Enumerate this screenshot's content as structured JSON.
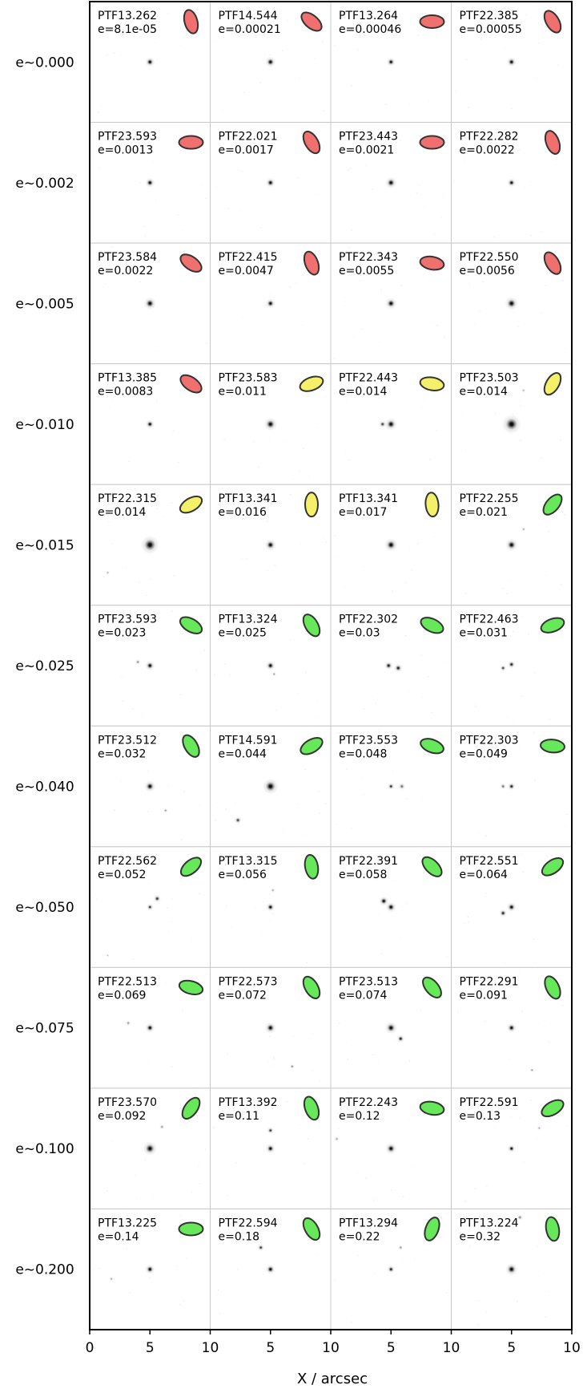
{
  "chart_data": {
    "type": "image_grid",
    "xlabel": "X / arcsec",
    "x_ticks": [
      "0",
      "5",
      "10",
      "5",
      "10",
      "5",
      "10",
      "5",
      "10"
    ],
    "columns": 4,
    "colors": {
      "red": "#f07070",
      "yellow": "#f5f06a",
      "green": "#66e85a",
      "edge": "#333333"
    },
    "rows": [
      {
        "label": "e~0.000",
        "cells": [
          {
            "name": "PTF13.262",
            "e": "e=8.1e-05",
            "color": "red",
            "angle": 75,
            "blobs": [
              [
                5,
                5,
                1.0,
                0.55
              ]
            ]
          },
          {
            "name": "PTF14.544",
            "e": "e=0.00021",
            "color": "red",
            "angle": 40,
            "blobs": [
              [
                5,
                5,
                1.0,
                0.6
              ]
            ]
          },
          {
            "name": "PTF13.264",
            "e": "e=0.00046",
            "color": "red",
            "angle": 0,
            "blobs": [
              [
                5,
                5,
                1.0,
                0.5
              ]
            ]
          },
          {
            "name": "PTF22.385",
            "e": "e=0.00055",
            "color": "red",
            "angle": 60,
            "blobs": [
              [
                5,
                5,
                1.0,
                0.55
              ]
            ]
          }
        ]
      },
      {
        "label": "e~0.002",
        "cells": [
          {
            "name": "PTF23.593",
            "e": "e=0.0013",
            "color": "red",
            "angle": 0,
            "blobs": [
              [
                5,
                5,
                1.0,
                0.55
              ]
            ]
          },
          {
            "name": "PTF22.021",
            "e": "e=0.0017",
            "color": "red",
            "angle": 60,
            "blobs": [
              [
                5,
                5,
                1.0,
                0.55
              ]
            ]
          },
          {
            "name": "PTF23.443",
            "e": "e=0.0021",
            "color": "red",
            "angle": 0,
            "blobs": [
              [
                5,
                5,
                1.0,
                0.65
              ]
            ]
          },
          {
            "name": "PTF22.282",
            "e": "e=0.0022",
            "color": "red",
            "angle": 70,
            "blobs": [
              [
                5,
                5,
                1.0,
                0.5
              ]
            ]
          }
        ]
      },
      {
        "label": "e~0.005",
        "cells": [
          {
            "name": "PTF23.584",
            "e": "e=0.0022",
            "color": "red",
            "angle": 35,
            "blobs": [
              [
                5,
                5,
                1.0,
                0.7
              ]
            ]
          },
          {
            "name": "PTF22.415",
            "e": "e=0.0047",
            "color": "red",
            "angle": 70,
            "blobs": [
              [
                5,
                5,
                1.0,
                0.55
              ]
            ]
          },
          {
            "name": "PTF22.343",
            "e": "e=0.0055",
            "color": "red",
            "angle": 10,
            "blobs": [
              [
                5,
                5,
                1.0,
                0.65
              ]
            ]
          },
          {
            "name": "PTF22.550",
            "e": "e=0.0056",
            "color": "red",
            "angle": 60,
            "blobs": [
              [
                5,
                5,
                1.0,
                0.75
              ]
            ]
          }
        ]
      },
      {
        "label": "e~0.010",
        "cells": [
          {
            "name": "PTF13.385",
            "e": "e=0.0083",
            "color": "red",
            "angle": 35,
            "blobs": [
              [
                5,
                5,
                1.0,
                0.5
              ]
            ]
          },
          {
            "name": "PTF23.583",
            "e": "e=0.011",
            "color": "yellow",
            "angle": -20,
            "blobs": [
              [
                5,
                5,
                1.0,
                0.75
              ]
            ]
          },
          {
            "name": "PTF22.443",
            "e": "e=0.014",
            "color": "yellow",
            "angle": 10,
            "blobs": [
              [
                4.3,
                5,
                0.7,
                0.45
              ],
              [
                5,
                5,
                1.0,
                0.7
              ]
            ]
          },
          {
            "name": "PTF23.503",
            "e": "e=0.014",
            "color": "yellow",
            "angle": -60,
            "blobs": [
              [
                5,
                5,
                1.0,
                1.1
              ],
              [
                6,
                2.2,
                0.25,
                0.3
              ]
            ]
          }
        ]
      },
      {
        "label": "e~0.015",
        "cells": [
          {
            "name": "PTF22.315",
            "e": "e=0.014",
            "color": "yellow",
            "angle": -30,
            "blobs": [
              [
                5,
                5,
                1.0,
                1.05
              ],
              [
                1.5,
                7.3,
                0.25,
                0.3
              ]
            ]
          },
          {
            "name": "PTF13.341",
            "e": "e=0.016",
            "color": "yellow",
            "angle": 90,
            "blobs": [
              [
                5,
                5,
                1.0,
                0.65
              ]
            ]
          },
          {
            "name": "PTF13.341",
            "e": "e=0.017",
            "color": "yellow",
            "angle": 85,
            "blobs": [
              [
                5,
                5,
                1.0,
                0.75
              ]
            ]
          },
          {
            "name": "PTF22.255",
            "e": "e=0.021",
            "color": "green",
            "angle": -50,
            "blobs": [
              [
                5,
                5,
                1.0,
                0.7
              ],
              [
                6,
                3.7,
                0.3,
                0.3
              ]
            ]
          }
        ]
      },
      {
        "label": "e~0.025",
        "cells": [
          {
            "name": "PTF23.593",
            "e": "e=0.023",
            "color": "green",
            "angle": 30,
            "blobs": [
              [
                4,
                4.7,
                0.4,
                0.35
              ],
              [
                5,
                5,
                1.0,
                0.55
              ]
            ]
          },
          {
            "name": "PTF13.324",
            "e": "e=0.025",
            "color": "green",
            "angle": 60,
            "blobs": [
              [
                5,
                5,
                1.0,
                0.55
              ],
              [
                5.3,
                5.7,
                0.35,
                0.3
              ]
            ]
          },
          {
            "name": "PTF22.302",
            "e": "e=0.03",
            "color": "green",
            "angle": 25,
            "blobs": [
              [
                4.8,
                5,
                0.9,
                0.5
              ],
              [
                5.6,
                5.2,
                0.9,
                0.5
              ]
            ]
          },
          {
            "name": "PTF22.463",
            "e": "e=0.031",
            "color": "green",
            "angle": -20,
            "blobs": [
              [
                4.3,
                5.2,
                0.7,
                0.4
              ],
              [
                5,
                4.9,
                0.9,
                0.45
              ]
            ]
          }
        ]
      },
      {
        "label": "e~0.040",
        "cells": [
          {
            "name": "PTF23.512",
            "e": "e=0.032",
            "color": "green",
            "angle": 60,
            "blobs": [
              [
                5,
                5,
                1.0,
                0.65
              ],
              [
                6.3,
                7,
                0.35,
                0.3
              ]
            ]
          },
          {
            "name": "PTF14.591",
            "e": "e=0.044",
            "color": "green",
            "angle": -30,
            "blobs": [
              [
                5,
                5,
                1.0,
                0.9
              ],
              [
                2.3,
                7.8,
                0.7,
                0.45
              ]
            ]
          },
          {
            "name": "PTF23.553",
            "e": "e=0.048",
            "color": "green",
            "angle": 20,
            "blobs": [
              [
                5,
                5,
                0.85,
                0.4
              ],
              [
                5.9,
                5,
                0.5,
                0.45
              ]
            ]
          },
          {
            "name": "PTF22.303",
            "e": "e=0.049",
            "color": "green",
            "angle": 5,
            "blobs": [
              [
                4.3,
                5,
                0.5,
                0.4
              ],
              [
                5,
                5,
                0.9,
                0.45
              ]
            ]
          }
        ]
      },
      {
        "label": "e~0.050",
        "cells": [
          {
            "name": "PTF22.562",
            "e": "e=0.052",
            "color": "green",
            "angle": -40,
            "blobs": [
              [
                5.6,
                4.3,
                0.8,
                0.45
              ],
              [
                5,
                5,
                0.8,
                0.4
              ],
              [
                1.5,
                9,
                0.2,
                0.25
              ]
            ]
          },
          {
            "name": "PTF13.315",
            "e": "e=0.056",
            "color": "green",
            "angle": 80,
            "blobs": [
              [
                5,
                5,
                1.0,
                0.5
              ],
              [
                5.2,
                3.6,
                0.3,
                0.3
              ]
            ]
          },
          {
            "name": "PTF22.391",
            "e": "e=0.058",
            "color": "green",
            "angle": 45,
            "blobs": [
              [
                4.4,
                4.5,
                1.0,
                0.55
              ],
              [
                5,
                5,
                1.0,
                0.6
              ]
            ]
          },
          {
            "name": "PTF22.551",
            "e": "e=0.064",
            "color": "green",
            "angle": -35,
            "blobs": [
              [
                4.3,
                5.5,
                0.9,
                0.45
              ],
              [
                5,
                5,
                1.0,
                0.55
              ]
            ]
          }
        ]
      },
      {
        "label": "e~0.075",
        "cells": [
          {
            "name": "PTF22.513",
            "e": "e=0.069",
            "color": "green",
            "angle": 15,
            "blobs": [
              [
                3.2,
                4.6,
                0.35,
                0.35
              ],
              [
                5,
                5,
                1.0,
                0.55
              ]
            ]
          },
          {
            "name": "PTF22.573",
            "e": "e=0.072",
            "color": "green",
            "angle": 60,
            "blobs": [
              [
                5,
                5,
                1.0,
                0.65
              ],
              [
                6.8,
                8.2,
                0.45,
                0.3
              ]
            ]
          },
          {
            "name": "PTF23.513",
            "e": "e=0.074",
            "color": "green",
            "angle": 50,
            "blobs": [
              [
                5,
                5,
                1.0,
                0.7
              ],
              [
                5.8,
                5.9,
                0.9,
                0.45
              ]
            ]
          },
          {
            "name": "PTF22.291",
            "e": "e=0.091",
            "color": "green",
            "angle": 65,
            "blobs": [
              [
                5,
                5,
                1.0,
                0.55
              ],
              [
                6.7,
                8.5,
                0.35,
                0.3
              ]
            ]
          }
        ]
      },
      {
        "label": "e~0.100",
        "cells": [
          {
            "name": "PTF23.570",
            "e": "e=0.092",
            "color": "green",
            "angle": -55,
            "blobs": [
              [
                5,
                5,
                1.0,
                0.8
              ],
              [
                6,
                3.2,
                0.35,
                0.35
              ]
            ]
          },
          {
            "name": "PTF13.392",
            "e": "e=0.11",
            "color": "green",
            "angle": 70,
            "blobs": [
              [
                5,
                3.5,
                0.8,
                0.4
              ],
              [
                5,
                5,
                1.0,
                0.55
              ]
            ]
          },
          {
            "name": "PTF22.243",
            "e": "e=0.12",
            "color": "green",
            "angle": 10,
            "blobs": [
              [
                5,
                5,
                1.0,
                0.65
              ],
              [
                0.5,
                4.2,
                0.3,
                0.35
              ]
            ]
          },
          {
            "name": "PTF22.591",
            "e": "e=0.13",
            "color": "green",
            "angle": -30,
            "blobs": [
              [
                5,
                5,
                1.0,
                0.45
              ],
              [
                7.3,
                3.3,
                0.3,
                0.3
              ]
            ]
          }
        ]
      },
      {
        "label": "e~0.200",
        "cells": [
          {
            "name": "PTF13.225",
            "e": "e=0.14",
            "color": "green",
            "angle": 0,
            "blobs": [
              [
                5,
                5,
                1.0,
                0.55
              ],
              [
                1.8,
                5.8,
                0.3,
                0.3
              ]
            ]
          },
          {
            "name": "PTF22.594",
            "e": "e=0.18",
            "color": "green",
            "angle": 60,
            "blobs": [
              [
                4.2,
                3.2,
                0.8,
                0.4
              ],
              [
                5,
                5,
                1.0,
                0.55
              ]
            ]
          },
          {
            "name": "PTF13.294",
            "e": "e=0.22",
            "color": "green",
            "angle": -70,
            "blobs": [
              [
                5,
                5,
                0.9,
                0.45
              ],
              [
                5.8,
                3.2,
                0.35,
                0.35
              ]
            ]
          },
          {
            "name": "PTF13.224",
            "e": "e=0.32",
            "color": "green",
            "angle": 80,
            "blobs": [
              [
                5,
                5,
                1.0,
                0.7
              ],
              [
                5.7,
                0.7,
                0.4,
                0.4
              ]
            ]
          }
        ]
      }
    ]
  }
}
